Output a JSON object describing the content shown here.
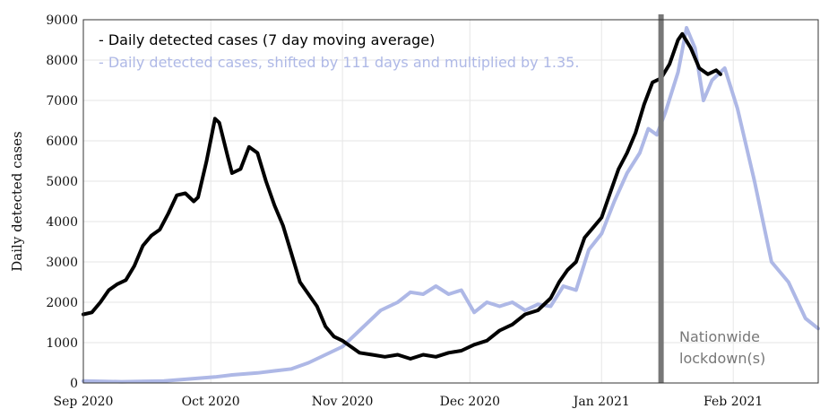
{
  "chart_data": {
    "type": "line",
    "xlabel": "",
    "ylabel": "Daily detected cases",
    "ylim": [
      0,
      9000
    ],
    "yticks": [
      0,
      1000,
      2000,
      3000,
      4000,
      5000,
      6000,
      7000,
      8000,
      9000
    ],
    "xlim": [
      "2020-09-01",
      "2021-02-21"
    ],
    "xticks": [
      {
        "date": "2020-09-01",
        "label": "Sep 2020"
      },
      {
        "date": "2020-10-01",
        "label": "Oct 2020"
      },
      {
        "date": "2020-11-01",
        "label": "Nov 2020"
      },
      {
        "date": "2020-12-01",
        "label": "Dec 2020"
      },
      {
        "date": "2021-01-01",
        "label": "Jan 2021"
      },
      {
        "date": "2021-02-01",
        "label": "Feb 2021"
      }
    ],
    "grid": true,
    "legend_position": "top-left",
    "series": [
      {
        "name": "Daily detected cases (7 day moving average)",
        "color": "#000000",
        "points": [
          [
            "2020-09-01",
            1700
          ],
          [
            "2020-09-03",
            1750
          ],
          [
            "2020-09-05",
            2000
          ],
          [
            "2020-09-07",
            2300
          ],
          [
            "2020-09-09",
            2450
          ],
          [
            "2020-09-11",
            2550
          ],
          [
            "2020-09-13",
            2900
          ],
          [
            "2020-09-15",
            3400
          ],
          [
            "2020-09-17",
            3650
          ],
          [
            "2020-09-19",
            3800
          ],
          [
            "2020-09-21",
            4200
          ],
          [
            "2020-09-23",
            4650
          ],
          [
            "2020-09-25",
            4700
          ],
          [
            "2020-09-27",
            4500
          ],
          [
            "2020-09-28",
            4600
          ],
          [
            "2020-09-30",
            5500
          ],
          [
            "2020-10-02",
            6550
          ],
          [
            "2020-10-03",
            6450
          ],
          [
            "2020-10-05",
            5600
          ],
          [
            "2020-10-06",
            5200
          ],
          [
            "2020-10-08",
            5300
          ],
          [
            "2020-10-10",
            5850
          ],
          [
            "2020-10-12",
            5700
          ],
          [
            "2020-10-14",
            5000
          ],
          [
            "2020-10-16",
            4400
          ],
          [
            "2020-10-18",
            3900
          ],
          [
            "2020-10-20",
            3200
          ],
          [
            "2020-10-22",
            2500
          ],
          [
            "2020-10-24",
            2200
          ],
          [
            "2020-10-26",
            1900
          ],
          [
            "2020-10-28",
            1400
          ],
          [
            "2020-10-30",
            1150
          ],
          [
            "2020-11-01",
            1050
          ],
          [
            "2020-11-03",
            900
          ],
          [
            "2020-11-05",
            750
          ],
          [
            "2020-11-08",
            700
          ],
          [
            "2020-11-11",
            650
          ],
          [
            "2020-11-14",
            700
          ],
          [
            "2020-11-17",
            600
          ],
          [
            "2020-11-20",
            700
          ],
          [
            "2020-11-23",
            650
          ],
          [
            "2020-11-26",
            750
          ],
          [
            "2020-11-29",
            800
          ],
          [
            "2020-12-02",
            950
          ],
          [
            "2020-12-05",
            1050
          ],
          [
            "2020-12-08",
            1300
          ],
          [
            "2020-12-11",
            1450
          ],
          [
            "2020-12-14",
            1700
          ],
          [
            "2020-12-17",
            1800
          ],
          [
            "2020-12-20",
            2100
          ],
          [
            "2020-12-22",
            2500
          ],
          [
            "2020-12-24",
            2800
          ],
          [
            "2020-12-26",
            3000
          ],
          [
            "2020-12-28",
            3600
          ],
          [
            "2020-12-30",
            3850
          ],
          [
            "2021-01-01",
            4100
          ],
          [
            "2021-01-03",
            4700
          ],
          [
            "2021-01-05",
            5300
          ],
          [
            "2021-01-07",
            5700
          ],
          [
            "2021-01-09",
            6200
          ],
          [
            "2021-01-11",
            6900
          ],
          [
            "2021-01-13",
            7450
          ],
          [
            "2021-01-15",
            7550
          ],
          [
            "2021-01-17",
            7900
          ],
          [
            "2021-01-19",
            8500
          ],
          [
            "2021-01-20",
            8650
          ],
          [
            "2021-01-22",
            8300
          ],
          [
            "2021-01-24",
            7800
          ],
          [
            "2021-01-26",
            7650
          ],
          [
            "2021-01-28",
            7750
          ],
          [
            "2021-01-29",
            7650
          ]
        ]
      },
      {
        "name": "Daily detected cases, shifted by 111 days and multiplied by 1.35.",
        "color": "#aeb8e6",
        "points": [
          [
            "2020-09-01",
            50
          ],
          [
            "2020-09-10",
            30
          ],
          [
            "2020-09-20",
            50
          ],
          [
            "2020-09-26",
            100
          ],
          [
            "2020-10-02",
            150
          ],
          [
            "2020-10-06",
            200
          ],
          [
            "2020-10-12",
            250
          ],
          [
            "2020-10-16",
            300
          ],
          [
            "2020-10-20",
            350
          ],
          [
            "2020-10-24",
            500
          ],
          [
            "2020-10-28",
            700
          ],
          [
            "2020-11-01",
            900
          ],
          [
            "2020-11-04",
            1200
          ],
          [
            "2020-11-07",
            1500
          ],
          [
            "2020-11-10",
            1800
          ],
          [
            "2020-11-14",
            2000
          ],
          [
            "2020-11-17",
            2250
          ],
          [
            "2020-11-20",
            2200
          ],
          [
            "2020-11-23",
            2400
          ],
          [
            "2020-11-26",
            2200
          ],
          [
            "2020-11-29",
            2300
          ],
          [
            "2020-12-02",
            1750
          ],
          [
            "2020-12-05",
            2000
          ],
          [
            "2020-12-08",
            1900
          ],
          [
            "2020-12-11",
            2000
          ],
          [
            "2020-12-14",
            1800
          ],
          [
            "2020-12-17",
            1950
          ],
          [
            "2020-12-20",
            1900
          ],
          [
            "2020-12-23",
            2400
          ],
          [
            "2020-12-26",
            2300
          ],
          [
            "2020-12-29",
            3300
          ],
          [
            "2021-01-01",
            3700
          ],
          [
            "2021-01-04",
            4500
          ],
          [
            "2021-01-07",
            5200
          ],
          [
            "2021-01-10",
            5700
          ],
          [
            "2021-01-12",
            6300
          ],
          [
            "2021-01-14",
            6150
          ],
          [
            "2021-01-16",
            6700
          ],
          [
            "2021-01-19",
            7700
          ],
          [
            "2021-01-21",
            8800
          ],
          [
            "2021-01-23",
            8300
          ],
          [
            "2021-01-25",
            7000
          ],
          [
            "2021-01-27",
            7500
          ],
          [
            "2021-01-30",
            7800
          ],
          [
            "2021-02-02",
            6800
          ],
          [
            "2021-02-06",
            5000
          ],
          [
            "2021-02-10",
            3000
          ],
          [
            "2021-02-14",
            2500
          ],
          [
            "2021-02-18",
            1600
          ],
          [
            "2021-02-21",
            1350
          ]
        ]
      }
    ],
    "annotations": [
      {
        "type": "vertical-line",
        "date": "2021-01-15",
        "color": "#777777",
        "label": "Nationwide lockdown(s)"
      }
    ]
  },
  "legend": {
    "item1": "- Daily detected cases (7 day moving average)",
    "item2": "- Daily detected cases, shifted by 111 days and multiplied by 1.35."
  },
  "annotation": {
    "line1": "Nationwide",
    "line2": "lockdown(s)"
  }
}
